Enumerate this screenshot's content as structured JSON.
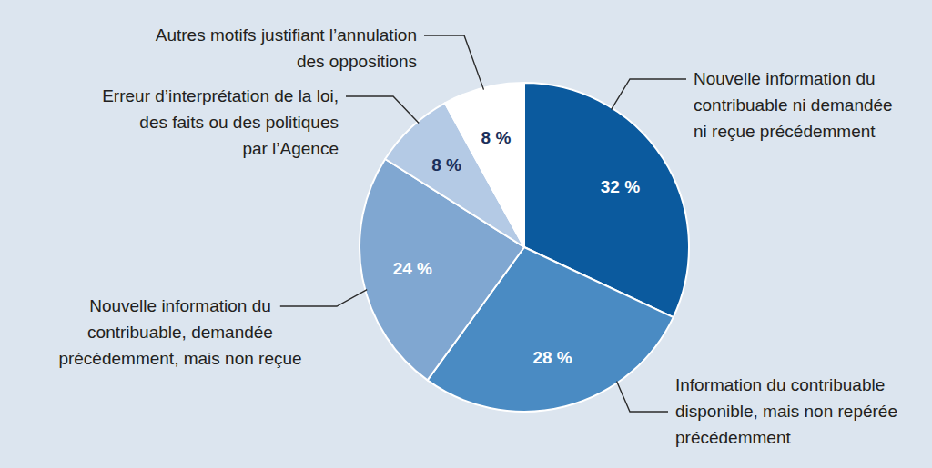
{
  "chart_data": {
    "type": "pie",
    "categories": [
      "Nouvelle information du\ncontribuable ni demandée\nni reçue précédemment",
      "Information du contribuable\ndisponible, mais non repérée\nprécédemment",
      "Nouvelle information du\ncontribuable, demandée\nprécédemment, mais non reçue",
      "Erreur d’interprétation de la loi,\ndes faits ou des politiques\npar l’Agence",
      "Autres motifs justifiant l’annulation\ndes oppositions"
    ],
    "values": [
      32,
      28,
      24,
      8,
      8
    ],
    "value_labels": [
      "32 %",
      "28 %",
      "24 %",
      "8 %",
      "8 %"
    ],
    "colors": [
      "#0b5a9e",
      "#4a8bc3",
      "#80a7d1",
      "#b4cae5",
      "#ffffff"
    ],
    "data_labels": true
  }
}
